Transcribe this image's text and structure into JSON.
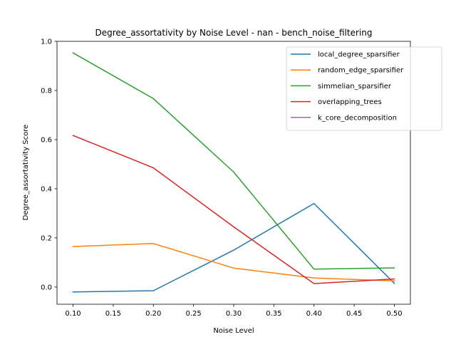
{
  "chart_data": {
    "type": "line",
    "title": "Degree_assortativity by Noise Level - nan - bench_noise_filtering",
    "xlabel": "Noise Level",
    "ylabel": "Degree_assortativity Score",
    "x": [
      0.1,
      0.2,
      0.3,
      0.4,
      0.5
    ],
    "xlim": [
      0.08,
      0.52
    ],
    "ylim": [
      -0.07,
      1.0
    ],
    "xticks": [
      "0.10",
      "0.15",
      "0.20",
      "0.25",
      "0.30",
      "0.35",
      "0.40",
      "0.45",
      "0.50"
    ],
    "yticks": [
      "0.0",
      "0.2",
      "0.4",
      "0.6",
      "0.8",
      "1.0"
    ],
    "grid": false,
    "legend_position": "top-right",
    "series": [
      {
        "name": "local_degree_sparsifier",
        "color": "#1f77b4",
        "values": [
          -0.02,
          -0.015,
          0.15,
          0.34,
          0.015
        ]
      },
      {
        "name": "random_edge_sparsifier",
        "color": "#ff7f0e",
        "values": [
          0.165,
          0.177,
          0.077,
          0.037,
          0.025
        ]
      },
      {
        "name": "simmelian_sparsifier",
        "color": "#2ca02c",
        "values": [
          0.953,
          0.767,
          0.468,
          0.073,
          0.078
        ]
      },
      {
        "name": "overlapping_trees",
        "color": "#d62728",
        "values": [
          0.617,
          0.485,
          0.245,
          0.014,
          0.033
        ]
      },
      {
        "name": "k_core_decomposition",
        "color": "#9467bd",
        "values": [
          null,
          null,
          null,
          null,
          null
        ]
      }
    ]
  }
}
